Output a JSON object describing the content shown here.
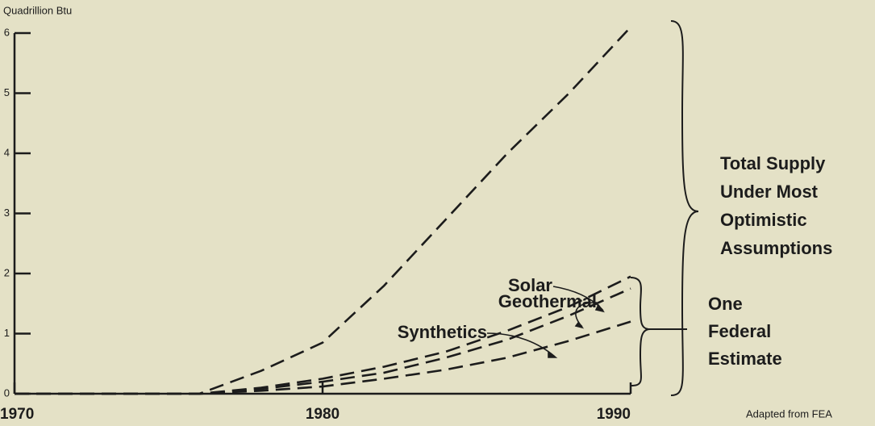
{
  "chart_data": {
    "type": "line",
    "y_axis_label": "Quadrillion Btu",
    "x": [
      1970,
      1976,
      1978,
      1980,
      1982,
      1984,
      1986,
      1988,
      1990
    ],
    "series": [
      {
        "color": "#1c1c1c",
        "values": [
          0,
          0,
          0.38,
          0.85,
          1.8,
          2.9,
          4.0,
          5.0,
          6.1
        ]
      },
      {
        "name": "Solar",
        "color": "#1c1c1c",
        "values": [
          0,
          0,
          0.1,
          0.25,
          0.45,
          0.7,
          1.05,
          1.45,
          1.95
        ]
      },
      {
        "name": "Geothermal",
        "color": "#1c1c1c",
        "values": [
          0,
          0,
          0.08,
          0.2,
          0.35,
          0.6,
          0.9,
          1.3,
          1.75
        ]
      },
      {
        "name": "Synthetics",
        "color": "#1c1c1c",
        "values": [
          0,
          0,
          0.05,
          0.12,
          0.25,
          0.4,
          0.6,
          0.88,
          1.2
        ]
      }
    ],
    "xlim": [
      1970,
      1990
    ],
    "xticks": [
      1970,
      1980,
      1990
    ],
    "ylim": [
      0,
      6
    ],
    "yticks": [
      0,
      1,
      2,
      3,
      4,
      5,
      6
    ],
    "total_label": [
      "Total Supply",
      "Under Most",
      "Optimistic",
      "Assumptions"
    ],
    "federal_label": [
      "One",
      "Federal",
      "Estimate"
    ],
    "source": "Adapted from FEA"
  }
}
